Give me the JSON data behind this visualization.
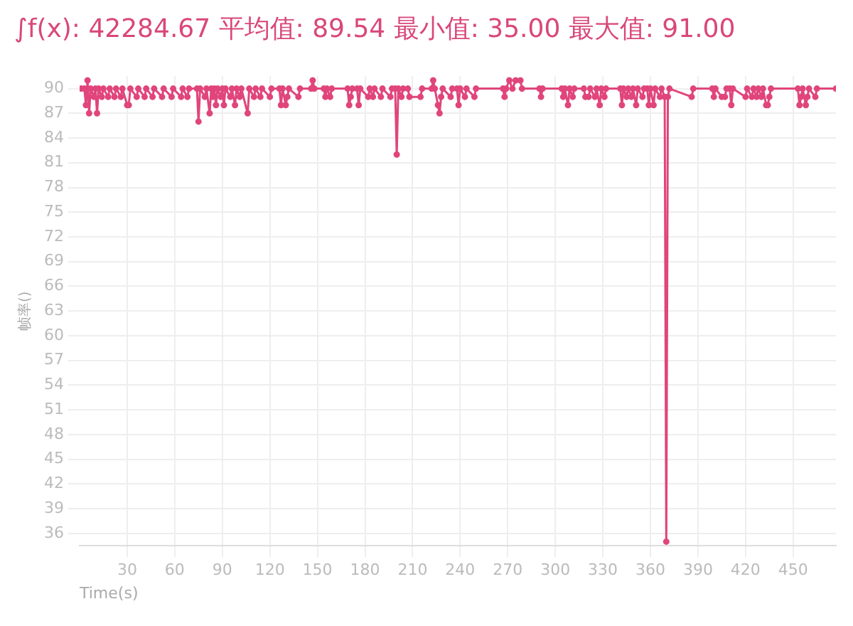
{
  "chart_data": {
    "type": "line",
    "title": "∫f(x): 42284.67 平均值: 89.54 最小值: 35.00 最大值: 91.00",
    "xlabel": "Time(s)",
    "ylabel": "帧率()",
    "xlim": [
      0,
      477
    ],
    "xticks": [
      30,
      60,
      90,
      120,
      150,
      180,
      210,
      240,
      270,
      300,
      330,
      360,
      390,
      420,
      450
    ],
    "ylim": [
      34.5,
      91.5
    ],
    "yticks": [
      36,
      39,
      42,
      45,
      48,
      51,
      54,
      57,
      60,
      63,
      66,
      69,
      72,
      75,
      78,
      81,
      84,
      87,
      90
    ],
    "grid": true,
    "legend": false,
    "marker": "circle",
    "line_style": "solid",
    "series": [
      {
        "color": "#e0457b",
        "x": [
          1,
          3,
          4,
          5,
          6,
          7,
          9,
          10,
          11,
          12,
          14,
          15,
          18,
          19,
          22,
          23,
          26,
          27,
          30,
          31,
          32,
          36,
          37,
          41,
          42,
          46,
          47,
          52,
          53,
          58,
          59,
          64,
          65,
          68,
          69,
          74,
          75,
          76,
          79,
          80,
          82,
          83,
          84,
          85,
          86,
          87,
          89,
          90,
          91,
          92,
          95,
          96,
          98,
          99,
          101,
          102,
          106,
          107,
          110,
          111,
          114,
          115,
          120,
          121,
          126,
          127,
          128,
          130,
          131,
          132,
          138,
          139,
          146,
          147,
          148,
          154,
          155,
          156,
          158,
          159,
          169,
          170,
          171,
          172,
          175,
          176,
          177,
          182,
          183,
          185,
          186,
          190,
          191,
          196,
          197,
          199,
          200,
          201,
          203,
          204,
          207,
          208,
          215,
          216,
          222,
          223,
          224,
          226,
          227,
          228,
          229,
          234,
          235,
          238,
          239,
          240,
          243,
          244,
          249,
          250,
          267,
          268,
          269,
          271,
          273,
          275,
          278,
          279,
          290,
          291,
          292,
          304,
          305,
          306,
          308,
          309,
          311,
          312,
          318,
          319,
          321,
          322,
          325,
          326,
          328,
          329,
          331,
          332,
          341,
          342,
          343,
          345,
          346,
          348,
          349,
          351,
          352,
          355,
          356,
          358,
          359,
          360,
          362,
          363,
          366,
          367,
          369,
          370,
          371,
          372,
          386,
          387,
          399,
          400,
          401,
          405,
          407,
          408,
          410,
          411,
          412,
          420,
          421,
          424,
          425,
          427,
          428,
          430,
          431,
          433,
          434,
          435,
          436,
          453,
          454,
          455,
          456,
          458,
          459,
          460,
          464,
          465,
          477
        ],
        "values": [
          90,
          90,
          88,
          91,
          87,
          90,
          89,
          90,
          87,
          90,
          89,
          90,
          89,
          90,
          89,
          90,
          89,
          90,
          88,
          88,
          90,
          89,
          90,
          89,
          90,
          89,
          90,
          89,
          90,
          89,
          90,
          89,
          90,
          89,
          90,
          90,
          86,
          90,
          89,
          90,
          87,
          90,
          89,
          90,
          88,
          90,
          89,
          90,
          88,
          90,
          89,
          90,
          88,
          90,
          89,
          90,
          87,
          90,
          89,
          90,
          89,
          90,
          89,
          90,
          90,
          88,
          90,
          88,
          89,
          90,
          89,
          90,
          90,
          91,
          90,
          90,
          89,
          90,
          89,
          90,
          90,
          88,
          89,
          90,
          90,
          88,
          90,
          89,
          90,
          89,
          90,
          89,
          90,
          89,
          90,
          90,
          82,
          90,
          89,
          90,
          90,
          89,
          89,
          90,
          90,
          91,
          90,
          88,
          87,
          89,
          90,
          89,
          90,
          90,
          88,
          90,
          89,
          90,
          89,
          90,
          90,
          89,
          90,
          91,
          90,
          91,
          91,
          90,
          90,
          89,
          90,
          90,
          89,
          90,
          88,
          90,
          89,
          90,
          90,
          89,
          89,
          90,
          89,
          90,
          88,
          90,
          89,
          90,
          90,
          88,
          90,
          89,
          90,
          89,
          90,
          88,
          90,
          89,
          90,
          90,
          88,
          90,
          88,
          90,
          89,
          90,
          89,
          35,
          89,
          90,
          89,
          90,
          90,
          89,
          90,
          89,
          89,
          90,
          90,
          88,
          90,
          89,
          90,
          89,
          90,
          89,
          90,
          89,
          90,
          88,
          88,
          89,
          90,
          90,
          88,
          89,
          90,
          88,
          89,
          90,
          89,
          90,
          90
        ]
      }
    ]
  }
}
